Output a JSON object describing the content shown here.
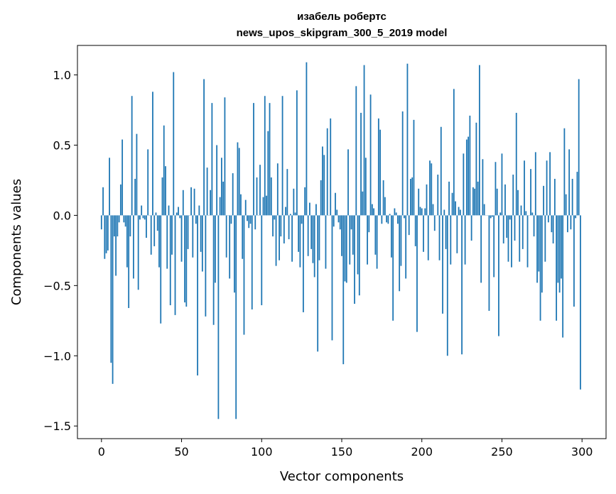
{
  "chart_data": {
    "type": "bar",
    "title": [
      "изабель робертс",
      "news_upos_skipgram_300_5_2019 model"
    ],
    "xlabel": "Vector components",
    "ylabel": "Components values",
    "xlim": [
      -15,
      315
    ],
    "ylim": [
      -1.59,
      1.21
    ],
    "xticks": [
      0,
      50,
      100,
      150,
      200,
      250,
      300
    ],
    "yticks": [
      -1.5,
      -1.0,
      -0.5,
      0.0,
      0.5,
      1.0
    ],
    "ytick_labels": [
      "−1.5",
      "−1.0",
      "−0.5",
      "0.0",
      "0.5",
      "1.0"
    ],
    "color": "#1f77b4",
    "values": [
      -0.1,
      0.2,
      -0.31,
      -0.27,
      -0.25,
      0.41,
      -1.05,
      -1.2,
      -0.15,
      -0.43,
      -0.15,
      -0.05,
      0.22,
      0.54,
      -0.05,
      -0.08,
      -0.37,
      -0.66,
      -0.15,
      0.85,
      -0.45,
      0.26,
      0.58,
      -0.53,
      -0.03,
      0.07,
      -0.02,
      -0.03,
      -0.16,
      0.47,
      0.0,
      -0.28,
      0.88,
      -0.22,
      0.02,
      -0.11,
      -0.37,
      -0.77,
      0.27,
      0.64,
      0.35,
      -0.38,
      0.07,
      -0.64,
      -0.28,
      1.02,
      -0.71,
      0.02,
      0.06,
      -0.02,
      -0.33,
      0.18,
      -0.62,
      -0.65,
      -0.24,
      0.0,
      0.2,
      -0.3,
      0.19,
      -0.06,
      -1.14,
      0.07,
      -0.26,
      -0.4,
      0.97,
      -0.72,
      0.34,
      0.0,
      0.18,
      0.8,
      -0.78,
      -0.48,
      0.5,
      -1.45,
      0.13,
      0.41,
      0.24,
      0.84,
      -0.3,
      0.0,
      -0.45,
      -0.06,
      0.3,
      -0.55,
      -1.45,
      0.52,
      0.48,
      0.15,
      -0.31,
      -0.85,
      0.11,
      -0.04,
      -0.09,
      -0.06,
      -0.67,
      0.8,
      -0.1,
      0.27,
      0.0,
      0.36,
      -0.64,
      0.13,
      0.85,
      0.14,
      0.6,
      0.8,
      0.27,
      -0.15,
      -0.03,
      -0.36,
      0.37,
      -0.32,
      -0.15,
      0.85,
      -0.2,
      0.06,
      0.33,
      -0.17,
      0.01,
      -0.33,
      0.19,
      0.02,
      0.89,
      -0.26,
      -0.37,
      -0.06,
      -0.69,
      0.2,
      1.09,
      -0.29,
      0.09,
      -0.24,
      -0.34,
      -0.44,
      0.08,
      -0.97,
      -0.32,
      0.25,
      0.49,
      0.43,
      -0.38,
      0.62,
      0.0,
      0.69,
      -0.89,
      -0.08,
      0.16,
      0.04,
      -0.05,
      -0.1,
      -0.29,
      -1.06,
      -0.47,
      -0.48,
      0.47,
      -0.35,
      -0.1,
      -0.28,
      -0.63,
      0.92,
      -0.42,
      -0.57,
      0.73,
      0.17,
      1.07,
      0.41,
      -0.35,
      -0.12,
      0.86,
      0.08,
      0.05,
      -0.28,
      -0.38,
      0.69,
      0.61,
      -0.06,
      0.25,
      0.13,
      -0.05,
      -0.06,
      0.01,
      -0.3,
      -0.75,
      0.05,
      0.02,
      -0.06,
      -0.54,
      -0.36,
      0.74,
      -0.02,
      -0.45,
      1.08,
      -0.14,
      0.26,
      0.27,
      0.68,
      -0.22,
      -0.83,
      0.19,
      0.06,
      0.05,
      -0.26,
      0.05,
      0.22,
      -0.32,
      0.39,
      0.37,
      0.08,
      -0.11,
      0.0,
      0.29,
      -0.32,
      0.63,
      -0.7,
      0.04,
      -0.24,
      -1.0,
      0.24,
      -0.35,
      0.16,
      0.9,
      0.1,
      -0.27,
      0.06,
      0.04,
      -0.99,
      0.44,
      -0.35,
      0.54,
      0.56,
      0.71,
      -0.18,
      0.2,
      0.19,
      0.66,
      0.24,
      1.07,
      -0.48,
      0.4,
      0.08,
      0.0,
      0.0,
      -0.68,
      -0.02,
      -0.01,
      -0.44,
      0.38,
      0.19,
      -0.86,
      0.02,
      0.44,
      -0.2,
      0.22,
      -0.16,
      -0.33,
      -0.03,
      -0.37,
      0.29,
      -0.18,
      0.73,
      0.18,
      -0.33,
      0.07,
      -0.24,
      0.39,
      0.03,
      -0.37,
      0.0,
      0.33,
      0.02,
      -0.15,
      0.45,
      -0.48,
      -0.4,
      -0.75,
      -0.55,
      0.21,
      -0.33,
      0.39,
      -0.05,
      0.45,
      -0.12,
      -0.2,
      0.26,
      -0.75,
      -0.48,
      -0.55,
      -0.45,
      -0.87,
      0.62,
      0.15,
      -0.12,
      0.47,
      -0.1,
      0.26,
      -0.65,
      -0.02,
      0.31,
      0.97,
      -1.24
    ]
  }
}
